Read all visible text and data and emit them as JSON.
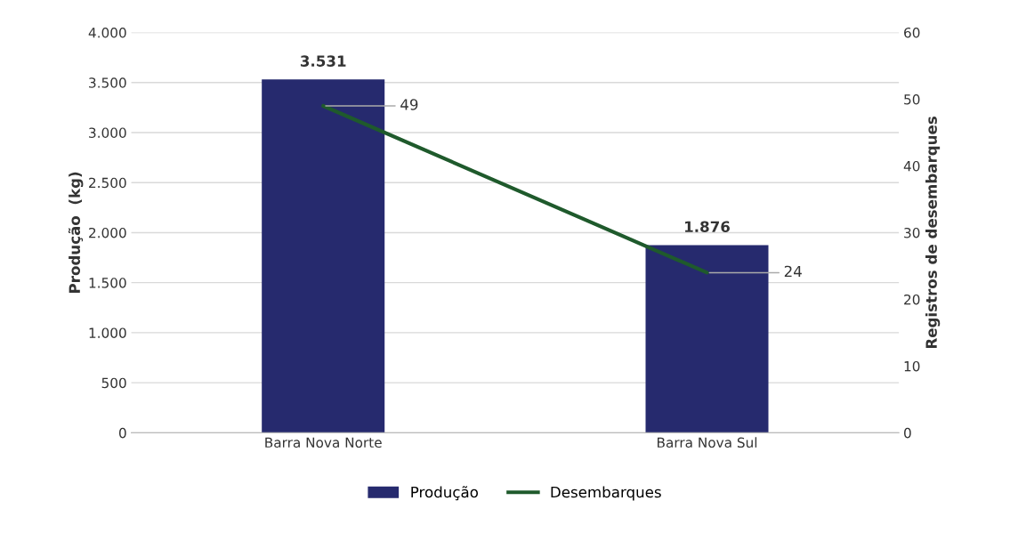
{
  "chart_data": {
    "type": "bar",
    "ylabel": "Produção  (kg)",
    "y2label": "Registros de desembarques",
    "categories": [
      "Barra Nova Norte",
      "Barra Nova Sul"
    ],
    "series": [
      {
        "name": "Produção",
        "color": "#262a6e",
        "values": [
          3531,
          1876
        ],
        "value_labels": [
          "3.531",
          "1.876"
        ]
      },
      {
        "name": "Desembarques",
        "type": "line",
        "axis": "y2",
        "color": "#1f5a2c",
        "values": [
          49,
          24
        ],
        "value_labels": [
          "49",
          "24"
        ],
        "marker": "none",
        "line_style": "solid"
      }
    ],
    "ylim": [
      0,
      4000
    ],
    "yticks": [
      0,
      500,
      {
        "value": 1000,
        "label": "1.000"
      },
      {
        "value": 1500,
        "label": "1.500"
      },
      {
        "value": 2000,
        "label": "2.000"
      },
      {
        "value": 2500,
        "label": "2.500"
      },
      {
        "value": 3000,
        "label": "3.000"
      },
      {
        "value": 3500,
        "label": "3.500"
      },
      {
        "value": 4000,
        "label": "4.000"
      }
    ],
    "y2lim": [
      0,
      60
    ],
    "y2ticks": [
      0,
      10,
      20,
      30,
      40,
      50,
      60
    ],
    "grid": "y",
    "legend": "bottom"
  }
}
